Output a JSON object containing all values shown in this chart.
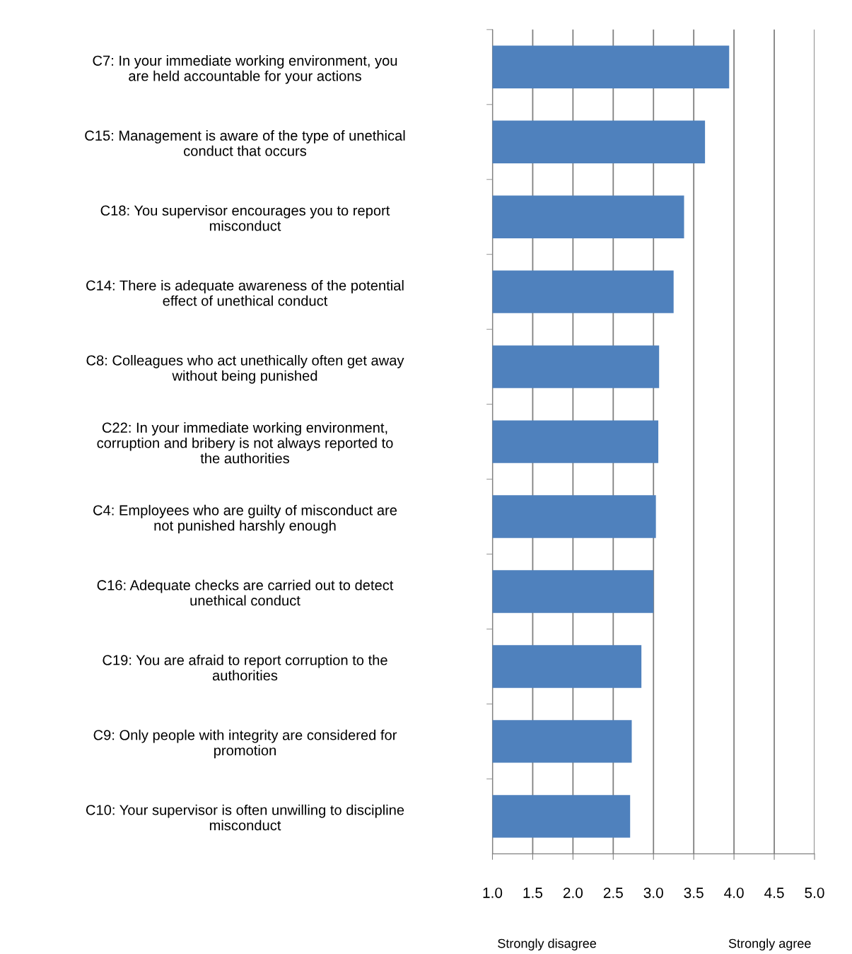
{
  "chart_data": {
    "type": "bar",
    "orientation": "horizontal",
    "categories": [
      "C7: In your immediate working environment, you\nare held accountable for your actions",
      "C15: Management is aware of the type of unethical\nconduct that occurs",
      "C18: You supervisor encourages you to report\nmisconduct",
      "C14: There is adequate awareness of the potential\neffect of unethical conduct",
      "C8: Colleagues who act unethically often get away\nwithout being punished",
      "C22: In your immediate working environment,\ncorruption and bribery is not always reported to\nthe authorities",
      "C4: Employees who are guilty of misconduct are\nnot punished harshly enough",
      "C16: Adequate checks are carried out to detect\nunethical conduct",
      "C19: You are afraid to report corruption to the\nauthorities",
      "C9: Only people with integrity are considered for\npromotion",
      "C10: Your supervisor is often unwilling to discipline\nmisconduct"
    ],
    "values": [
      3.94,
      3.64,
      3.38,
      3.25,
      3.07,
      3.06,
      3.03,
      3.0,
      2.85,
      2.73,
      2.71
    ],
    "color": "#4f81bd",
    "xlim": [
      1.0,
      5.0
    ],
    "xticks": [
      {
        "value": 1,
        "label": "1.0"
      },
      1.5,
      {
        "value": 2,
        "label": "2.0"
      },
      2.5,
      {
        "value": 3,
        "label": "3.0"
      },
      3.5,
      {
        "value": 4,
        "label": "4.0"
      },
      4.5,
      {
        "value": 5,
        "label": "5.0"
      }
    ],
    "grid": "x",
    "annotations": [
      "Strongly disagree",
      "Strongly agree"
    ]
  }
}
